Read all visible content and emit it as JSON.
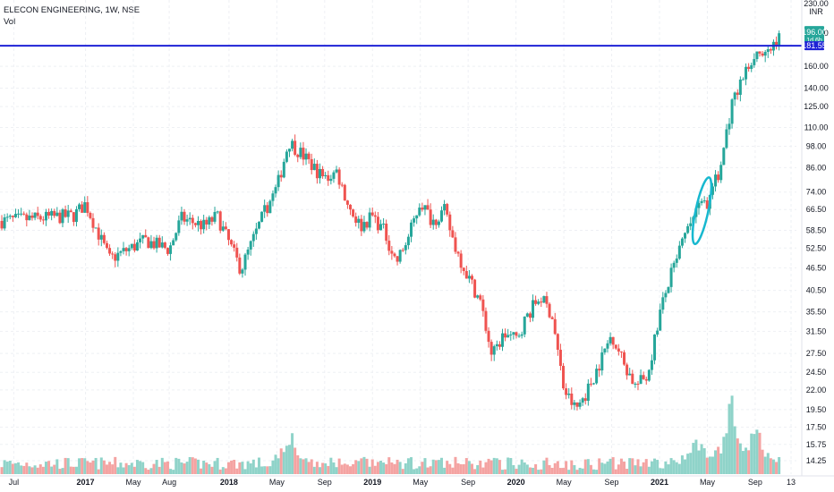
{
  "header": {
    "title": "ELECON ENGINEERING, 1W, NSE",
    "indicator": "Vol"
  },
  "colors": {
    "up": "#26a69a",
    "down": "#ef5350",
    "vol_up": "#8fd3c9",
    "vol_down": "#f4a3a2",
    "hline": "#1e22d6",
    "ellipse": "#17b8cf",
    "price_tag": "#26a69a",
    "hline_tag": "#1e22d6",
    "grid": "#eef0f4"
  },
  "price_axis": {
    "currency": "INR",
    "ticks": [
      "230.00",
      "196.00",
      "160.00",
      "140.00",
      "125.00",
      "110.00",
      "98.00",
      "86.00",
      "74.00",
      "66.50",
      "58.50",
      "52.50",
      "46.50",
      "40.50",
      "35.50",
      "31.50",
      "27.50",
      "24.50",
      "22.00",
      "19.50",
      "17.50",
      "15.75",
      "14.25"
    ],
    "current_price": "196.00",
    "current_sub": "1d 6h",
    "hline_price": "181.55"
  },
  "time_axis": {
    "labels": [
      "Jul",
      "2017",
      "May",
      "Aug",
      "2018",
      "May",
      "Sep",
      "2019",
      "May",
      "Sep",
      "2020",
      "May",
      "Sep",
      "2021",
      "May",
      "Sep",
      "13"
    ]
  },
  "chart_data": {
    "type": "candlestick",
    "title": "ELECON ENGINEERING, 1W, NSE",
    "scale": "log",
    "ylim": [
      14.25,
      230.0
    ],
    "x_range": [
      "2016-06",
      "2021-12"
    ],
    "horizontal_line": 181.55,
    "last_close": 196.0,
    "close_path": [
      [
        "2016-06",
        62
      ],
      [
        "2016-12",
        64
      ],
      [
        "2017-01",
        69
      ],
      [
        "2017-03",
        49
      ],
      [
        "2017-06",
        55
      ],
      [
        "2017-08",
        52
      ],
      [
        "2017-09",
        63
      ],
      [
        "2017-11",
        60
      ],
      [
        "2017-12",
        64
      ],
      [
        "2018-02",
        46
      ],
      [
        "2018-04",
        66
      ],
      [
        "2018-05",
        76
      ],
      [
        "2018-06",
        101
      ],
      [
        "2018-07",
        94
      ],
      [
        "2018-09",
        80
      ],
      [
        "2018-10",
        84
      ],
      [
        "2018-11",
        68
      ],
      [
        "2018-12",
        60
      ],
      [
        "2019-01",
        64
      ],
      [
        "2019-02",
        58
      ],
      [
        "2019-03",
        48
      ],
      [
        "2019-04",
        56
      ],
      [
        "2019-05",
        70
      ],
      [
        "2019-06",
        62
      ],
      [
        "2019-07",
        66
      ],
      [
        "2019-08",
        52
      ],
      [
        "2019-09",
        44
      ],
      [
        "2019-10",
        38
      ],
      [
        "2019-11",
        27
      ],
      [
        "2019-12",
        31
      ],
      [
        "2020-01",
        30
      ],
      [
        "2020-02",
        35
      ],
      [
        "2020-03",
        39
      ],
      [
        "2020-04",
        35
      ],
      [
        "2020-05",
        22
      ],
      [
        "2020-06",
        19.5
      ],
      [
        "2020-07",
        22
      ],
      [
        "2020-08",
        26
      ],
      [
        "2020-09",
        31
      ],
      [
        "2020-10",
        26
      ],
      [
        "2020-11",
        22.5
      ],
      [
        "2020-12",
        24
      ],
      [
        "2021-01",
        35
      ],
      [
        "2021-02",
        45
      ],
      [
        "2021-03",
        55
      ],
      [
        "2021-04",
        66
      ],
      [
        "2021-05",
        70
      ],
      [
        "2021-06",
        84
      ],
      [
        "2021-07",
        125
      ],
      [
        "2021-08",
        150
      ],
      [
        "2021-09",
        175
      ],
      [
        "2021-10",
        170
      ],
      [
        "2021-11",
        196
      ]
    ],
    "volume_spikes": [
      [
        "2018-06",
        "high"
      ],
      [
        "2021-04",
        "high"
      ],
      [
        "2021-07",
        "very high"
      ],
      [
        "2021-09",
        "high"
      ]
    ],
    "annotations": [
      {
        "type": "ellipse",
        "at": "2021-05",
        "around_price": 66
      }
    ]
  }
}
